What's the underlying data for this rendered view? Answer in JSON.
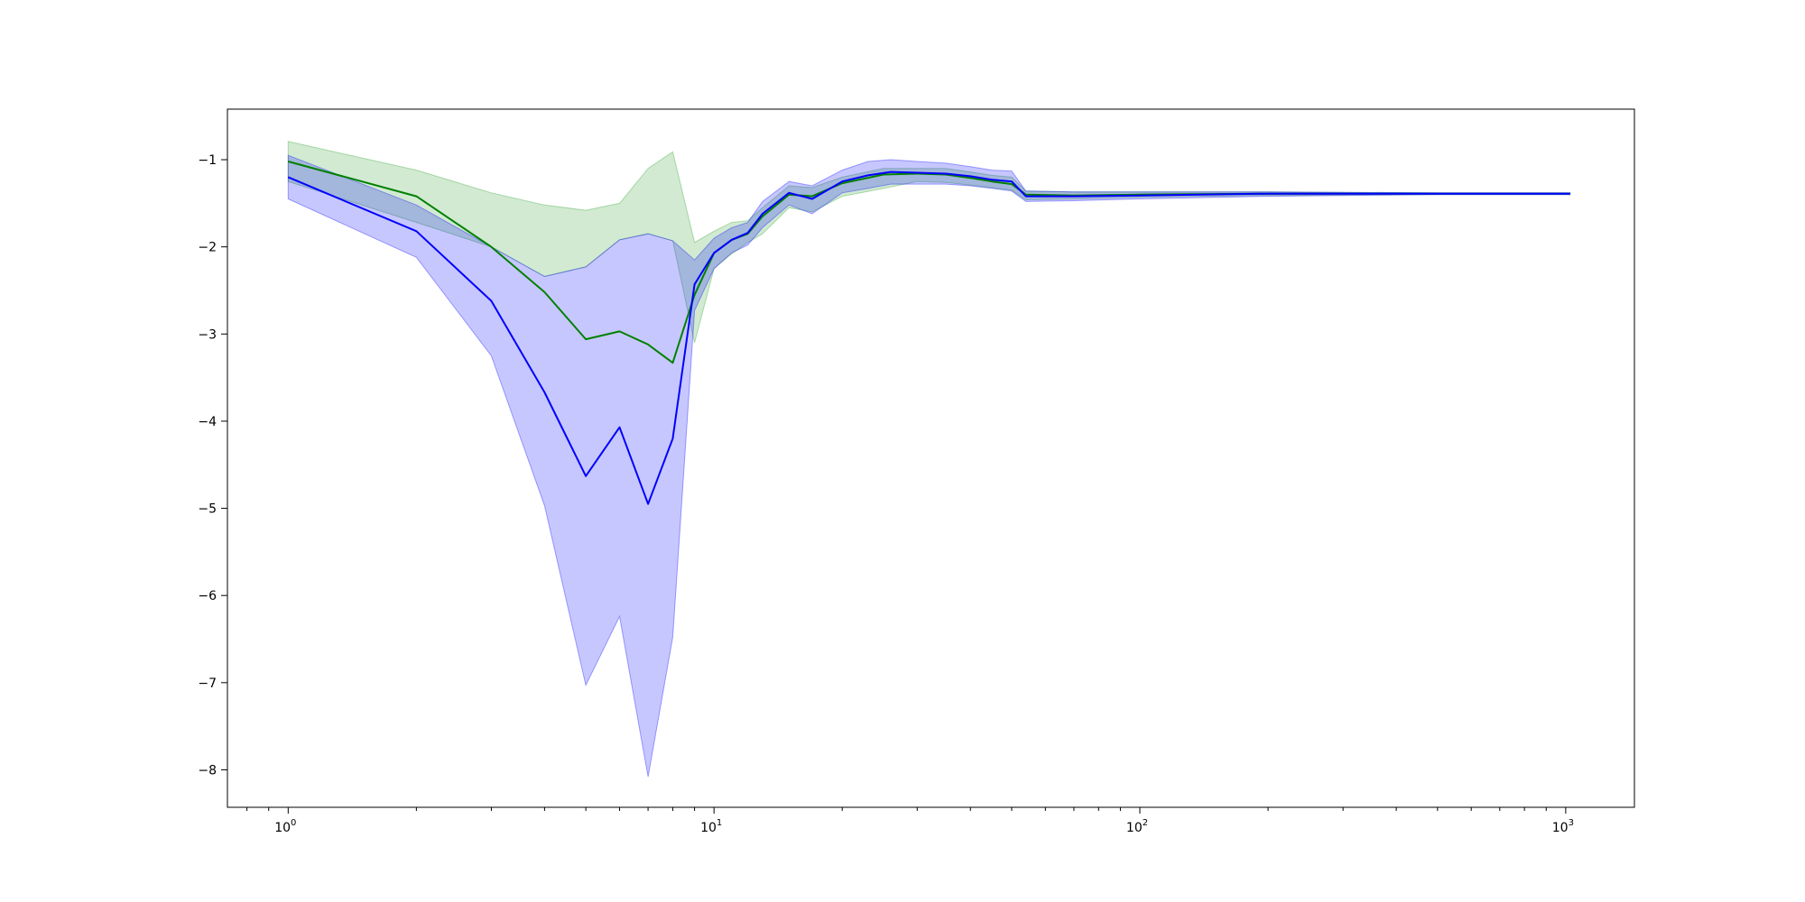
{
  "chart_data": {
    "type": "line",
    "title": "",
    "xlabel": "",
    "ylabel": "",
    "xscale": "log",
    "xlim": [
      0.72,
      1450
    ],
    "ylim": [
      -8.43,
      -0.42
    ],
    "grid": false,
    "legend": "none",
    "x_ticks": [
      {
        "value": 1,
        "base": "10",
        "exp": "0"
      },
      {
        "value": 10,
        "base": "10",
        "exp": "1"
      },
      {
        "value": 100,
        "base": "10",
        "exp": "2"
      },
      {
        "value": 1000,
        "base": "10",
        "exp": "3"
      }
    ],
    "y_ticks": [
      {
        "value": -1,
        "label": "−1"
      },
      {
        "value": -2,
        "label": "−2"
      },
      {
        "value": -3,
        "label": "−3"
      },
      {
        "value": -4,
        "label": "−4"
      },
      {
        "value": -5,
        "label": "−5"
      },
      {
        "value": -6,
        "label": "−6"
      },
      {
        "value": -7,
        "label": "−7"
      },
      {
        "value": -8,
        "label": "−8"
      }
    ],
    "series": [
      {
        "color": "#008000",
        "band_color": "#2ca02c",
        "points": [
          [
            1,
            -1.02,
            -0.79,
            -1.25
          ],
          [
            2,
            -1.42,
            -1.12,
            -1.72
          ],
          [
            3,
            -2.0,
            -1.38,
            -2.0
          ],
          [
            4,
            -2.52,
            -1.52,
            -2.34
          ],
          [
            5,
            -3.06,
            -1.58,
            -2.23
          ],
          [
            6,
            -2.97,
            -1.5,
            -1.92
          ],
          [
            7,
            -3.12,
            -1.1,
            -1.85
          ],
          [
            8,
            -3.33,
            -0.91,
            -1.93
          ],
          [
            9,
            -2.55,
            -1.95,
            -3.1
          ],
          [
            10,
            -2.07,
            -1.82,
            -2.25
          ],
          [
            11,
            -1.92,
            -1.72,
            -2.08
          ],
          [
            12,
            -1.85,
            -1.7,
            -1.95
          ],
          [
            13,
            -1.65,
            -1.55,
            -1.85
          ],
          [
            15,
            -1.4,
            -1.3,
            -1.55
          ],
          [
            17,
            -1.42,
            -1.32,
            -1.6
          ],
          [
            20,
            -1.27,
            -1.2,
            -1.42
          ],
          [
            25,
            -1.17,
            -1.1,
            -1.33
          ],
          [
            30,
            -1.16,
            -1.1,
            -1.25
          ],
          [
            35,
            -1.17,
            -1.1,
            -1.26
          ],
          [
            40,
            -1.21,
            -1.14,
            -1.29
          ],
          [
            45,
            -1.25,
            -1.18,
            -1.32
          ],
          [
            50,
            -1.28,
            -1.2,
            -1.35
          ],
          [
            54,
            -1.4,
            -1.36,
            -1.46
          ],
          [
            70,
            -1.41,
            -1.37,
            -1.45
          ],
          [
            100,
            -1.4,
            -1.37,
            -1.43
          ],
          [
            200,
            -1.39,
            -1.37,
            -1.41
          ],
          [
            500,
            -1.39,
            -1.38,
            -1.4
          ],
          [
            1024,
            -1.39,
            -1.38,
            -1.4
          ]
        ]
      },
      {
        "color": "#0000ff",
        "band_color": "#0000ff",
        "points": [
          [
            1,
            -1.2,
            -0.95,
            -1.45
          ],
          [
            2,
            -1.82,
            -1.52,
            -2.12
          ],
          [
            3,
            -2.62,
            -2.0,
            -3.25
          ],
          [
            4,
            -3.67,
            -2.34,
            -4.97
          ],
          [
            5,
            -4.63,
            -2.23,
            -7.03
          ],
          [
            6,
            -4.07,
            -1.92,
            -6.24
          ],
          [
            7,
            -4.95,
            -1.85,
            -8.08
          ],
          [
            8,
            -4.2,
            -1.93,
            -6.48
          ],
          [
            9,
            -2.43,
            -2.15,
            -2.73
          ],
          [
            10,
            -2.07,
            -1.9,
            -2.25
          ],
          [
            11,
            -1.92,
            -1.78,
            -2.07
          ],
          [
            12,
            -1.84,
            -1.72,
            -1.98
          ],
          [
            13,
            -1.62,
            -1.48,
            -1.78
          ],
          [
            15,
            -1.38,
            -1.25,
            -1.52
          ],
          [
            17,
            -1.45,
            -1.3,
            -1.62
          ],
          [
            20,
            -1.25,
            -1.12,
            -1.38
          ],
          [
            23,
            -1.18,
            -1.02,
            -1.33
          ],
          [
            26,
            -1.14,
            -1.0,
            -1.28
          ],
          [
            30,
            -1.15,
            -1.02,
            -1.28
          ],
          [
            35,
            -1.16,
            -1.04,
            -1.28
          ],
          [
            40,
            -1.19,
            -1.08,
            -1.3
          ],
          [
            45,
            -1.23,
            -1.12,
            -1.33
          ],
          [
            50,
            -1.25,
            -1.13,
            -1.36
          ],
          [
            54,
            -1.42,
            -1.36,
            -1.48
          ],
          [
            70,
            -1.42,
            -1.37,
            -1.47
          ],
          [
            100,
            -1.41,
            -1.37,
            -1.45
          ],
          [
            200,
            -1.39,
            -1.37,
            -1.42
          ],
          [
            500,
            -1.39,
            -1.38,
            -1.4
          ],
          [
            1024,
            -1.39,
            -1.38,
            -1.4
          ]
        ]
      }
    ]
  }
}
